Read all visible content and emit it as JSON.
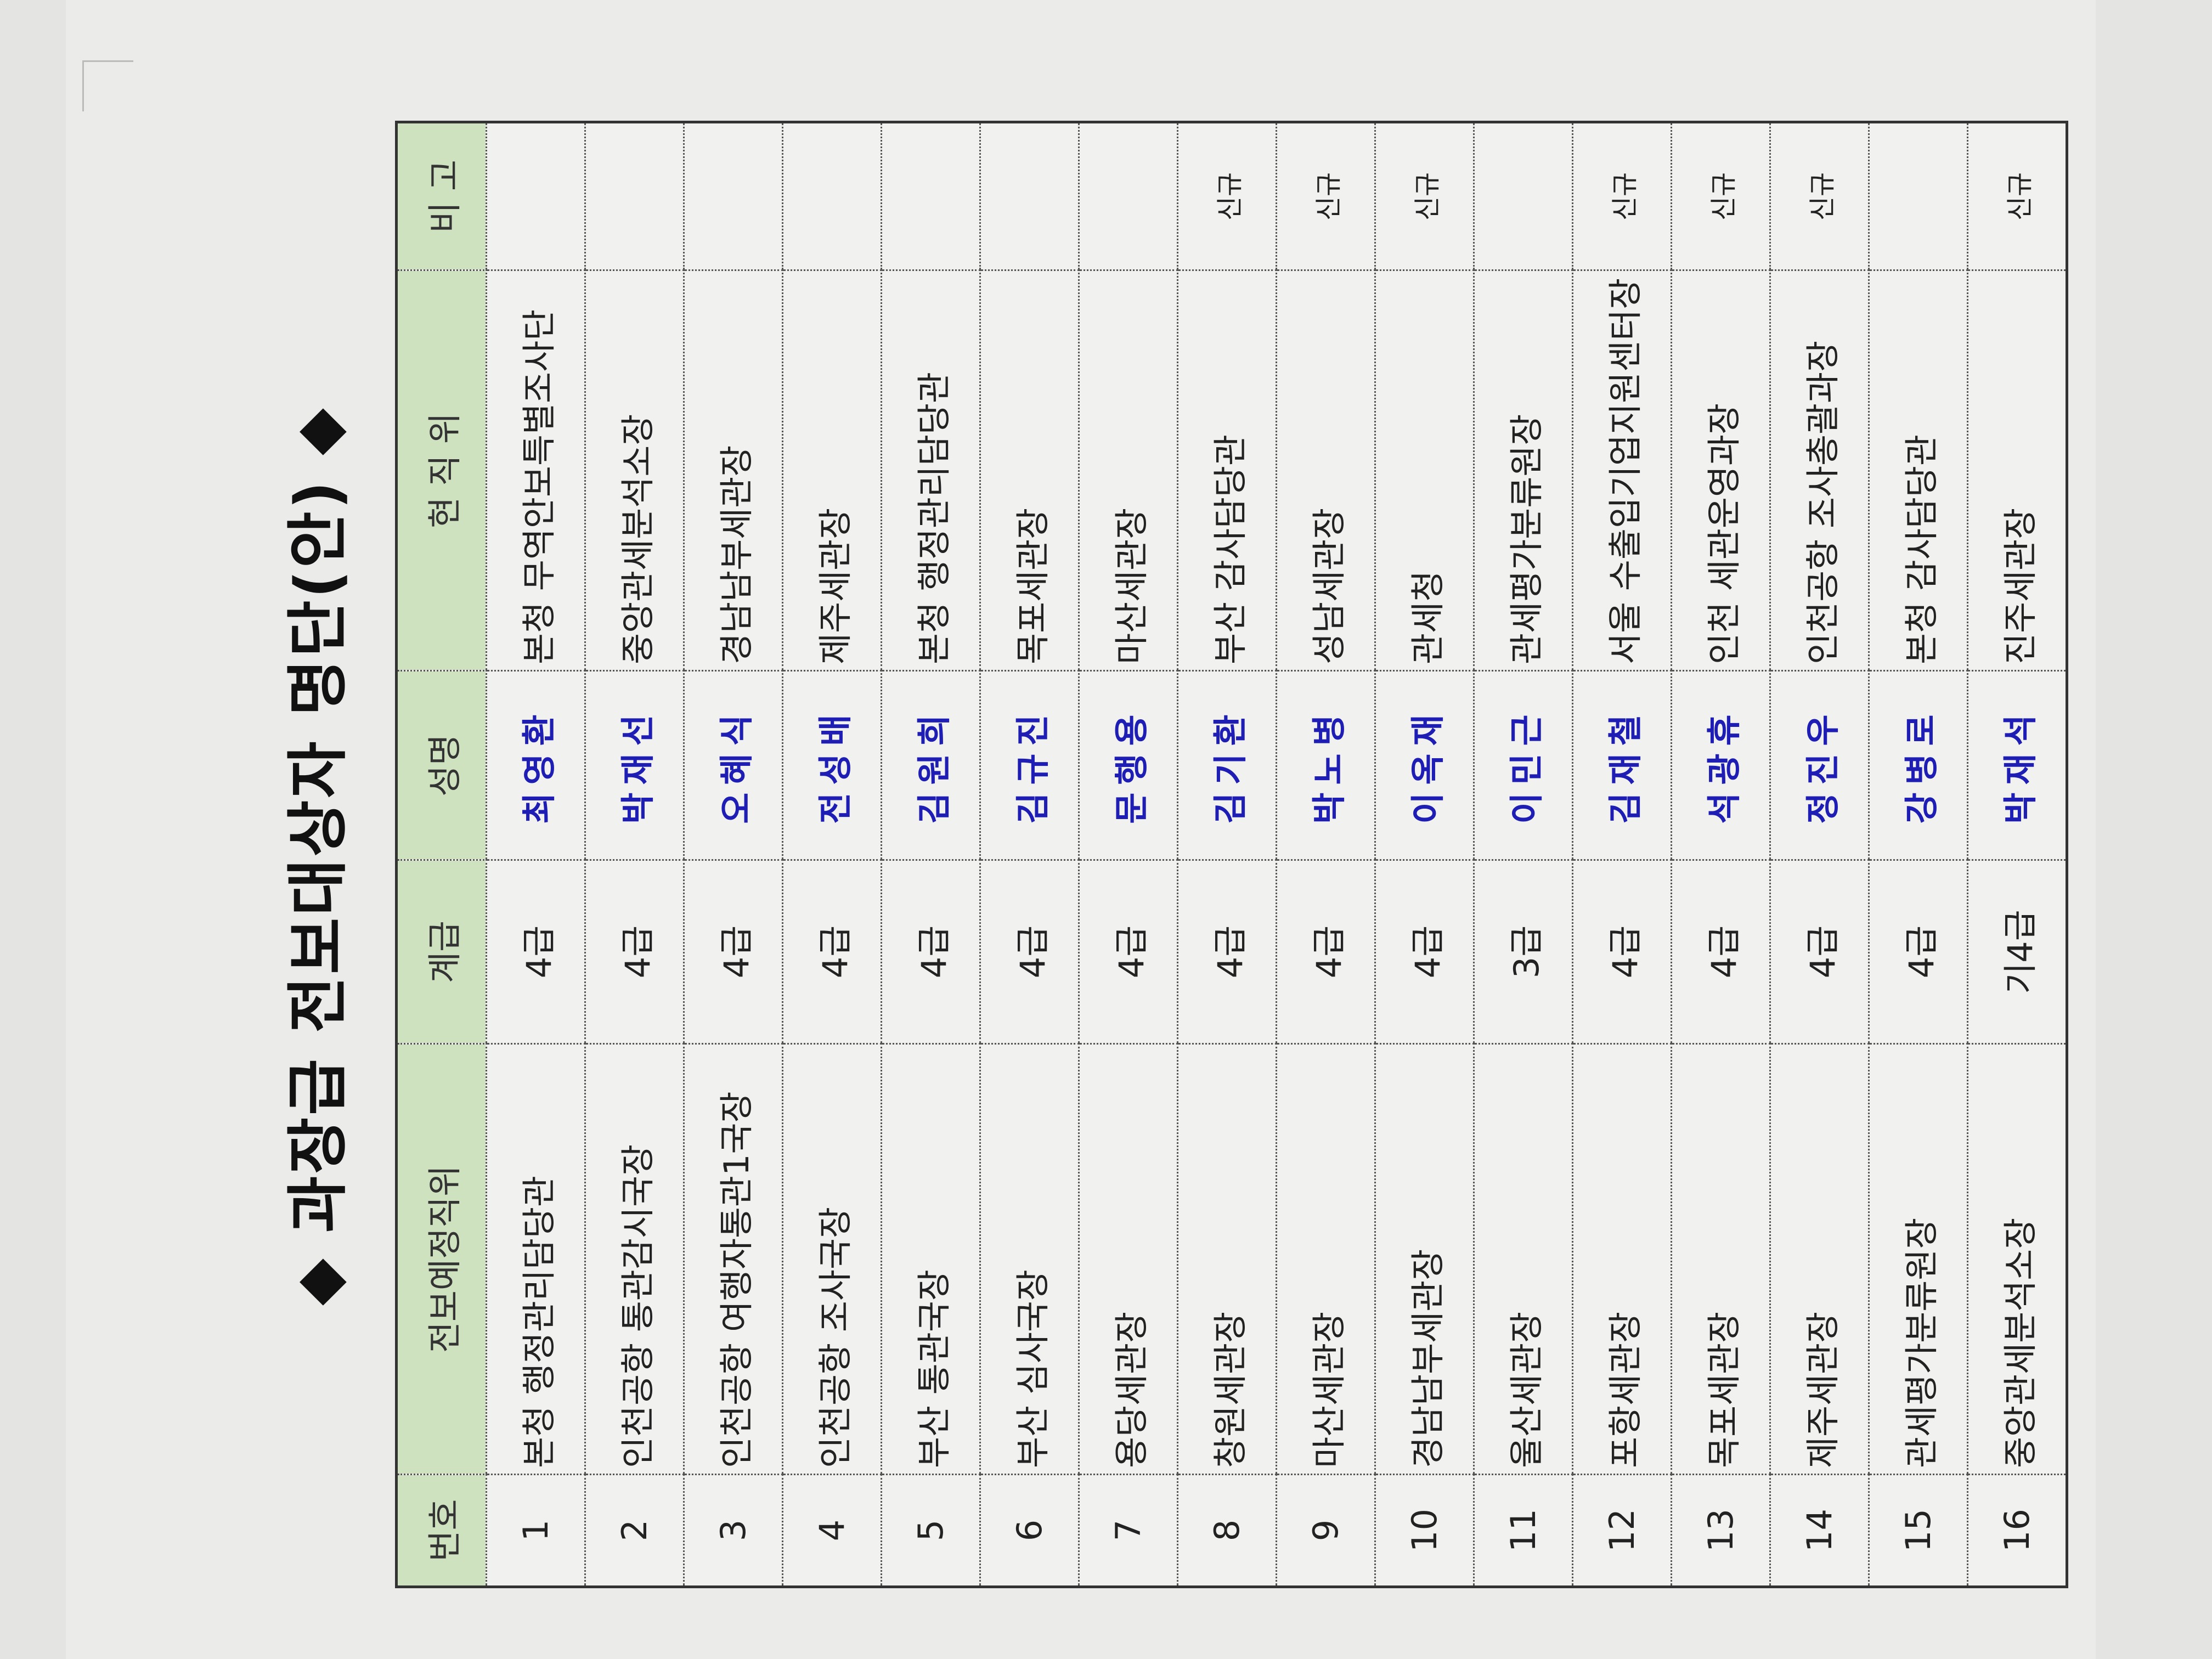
{
  "title": "◆ 과장급 전보대상자 명단(안) ◆",
  "colors": {
    "header_bg": "#cfe2bf",
    "name_text": "#1e1eb4",
    "cell_bg": "#f1f1ef"
  },
  "columns": [
    "번호",
    "전보예정직위",
    "계급",
    "성명",
    "현 직 위",
    "비 고"
  ],
  "rows": [
    {
      "no": "1",
      "target": "본청 행정관리담당관",
      "grade": "4급",
      "name": "최영환",
      "current": "본청 무역안보특별조사단",
      "note": ""
    },
    {
      "no": "2",
      "target": "인천공항 통관감시국장",
      "grade": "4급",
      "name": "박재선",
      "current": "중앙관세분석소장",
      "note": ""
    },
    {
      "no": "3",
      "target": "인천공항 여행자통관1국장",
      "grade": "4급",
      "name": "오혜식",
      "current": "경남남부세관장",
      "note": ""
    },
    {
      "no": "4",
      "target": "인천공항 조사국장",
      "grade": "4급",
      "name": "전성배",
      "current": "제주세관장",
      "note": ""
    },
    {
      "no": "5",
      "target": "부산 통관국장",
      "grade": "4급",
      "name": "김원희",
      "current": "본청 행정관리담당관",
      "note": ""
    },
    {
      "no": "6",
      "target": "부산 심사국장",
      "grade": "4급",
      "name": "김규진",
      "current": "목포세관장",
      "note": ""
    },
    {
      "no": "7",
      "target": "용당세관장",
      "grade": "4급",
      "name": "문행용",
      "current": "마산세관장",
      "note": ""
    },
    {
      "no": "8",
      "target": "창원세관장",
      "grade": "4급",
      "name": "김기환",
      "current": "부산 감사담당관",
      "note": "신규"
    },
    {
      "no": "9",
      "target": "마산세관장",
      "grade": "4급",
      "name": "박노병",
      "current": "성남세관장",
      "note": "신규"
    },
    {
      "no": "10",
      "target": "경남남부세관장",
      "grade": "4급",
      "name": "이옥재",
      "current": "관세청",
      "note": "신규"
    },
    {
      "no": "11",
      "target": "울산세관장",
      "grade": "3급",
      "name": "이민근",
      "current": "관세평가분류원장",
      "note": ""
    },
    {
      "no": "12",
      "target": "포항세관장",
      "grade": "4급",
      "name": "김재철",
      "current": "서울 수출입기업지원센터장",
      "note": "신규"
    },
    {
      "no": "13",
      "target": "목포세관장",
      "grade": "4급",
      "name": "석광휴",
      "current": "인천 세관운영과장",
      "note": "신규"
    },
    {
      "no": "14",
      "target": "제주세관장",
      "grade": "4급",
      "name": "정진우",
      "current": "인천공항 조사총괄과장",
      "note": "신규"
    },
    {
      "no": "15",
      "target": "관세평가분류원장",
      "grade": "4급",
      "name": "강병로",
      "current": "본청 감사담당관",
      "note": ""
    },
    {
      "no": "16",
      "target": "중앙관세분석소장",
      "grade": "기4급",
      "name": "박재석",
      "current": "진주세관장",
      "note": "신규"
    }
  ]
}
